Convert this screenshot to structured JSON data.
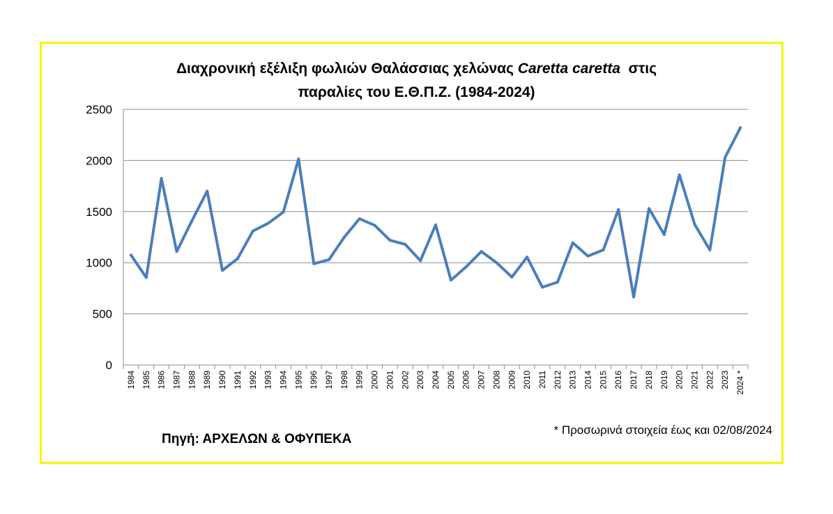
{
  "chart_data": {
    "type": "line",
    "title_part1": "Διαχρονική εξέλιξη φωλιών Θαλάσσιας χελώνας ",
    "title_species": "Caretta caretta",
    "title_part2": "  στις",
    "title_line2": "παραλίες του Ε.Θ.Π.Ζ. (1984-2024)",
    "categories": [
      "1984",
      "1985",
      "1986",
      "1987",
      "1988",
      "1989",
      "1990",
      "1991",
      "1992",
      "1993",
      "1994",
      "1995",
      "1996",
      "1997",
      "1998",
      "1999",
      "2000",
      "2001",
      "2002",
      "2003",
      "2004",
      "2005",
      "2006",
      "2007",
      "2008",
      "2009",
      "2010",
      "2011",
      "2012",
      "2013",
      "2014",
      "2015",
      "2016",
      "2017",
      "2018",
      "2019",
      "2020",
      "2021",
      "2022",
      "2023",
      "2024 *"
    ],
    "series": [
      {
        "values": [
          1075,
          855,
          1825,
          1110,
          1410,
          1700,
          925,
          1040,
          1310,
          1385,
          1495,
          2015,
          990,
          1030,
          1250,
          1430,
          1365,
          1220,
          1180,
          1020,
          1370,
          830,
          960,
          1110,
          1000,
          860,
          1055,
          760,
          810,
          1195,
          1065,
          1125,
          1520,
          665,
          1530,
          1275,
          1860,
          1375,
          1125,
          2030,
          2320
        ],
        "color": "#4a7ebb"
      }
    ],
    "yticks": [
      "0",
      "500",
      "1000",
      "1500",
      "2000",
      "2500"
    ],
    "ylim": [
      0,
      2500
    ],
    "grid": true,
    "source": "Πηγή: ΑΡΧΕΛΩΝ & ΟΦΥΠΕΚΑ",
    "footnote": "* Προσωρινά στοιχεία έως και 02/08/2024"
  }
}
